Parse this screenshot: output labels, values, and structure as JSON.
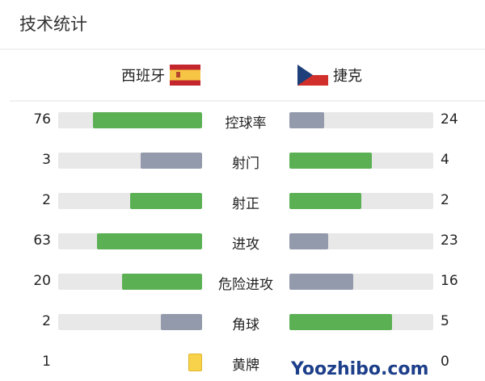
{
  "title": "技术统计",
  "teams": {
    "home": {
      "name": "西班牙",
      "flag": "spain-flag"
    },
    "away": {
      "name": "捷克",
      "flag": "czech-flag"
    }
  },
  "colors": {
    "winner": "#5cb054",
    "loser": "#939aab",
    "track": "#e8e8e8",
    "yellow_card": "#f8d24a"
  },
  "stats": [
    {
      "label": "控球率",
      "home": "76",
      "away": "24"
    },
    {
      "label": "射门",
      "home": "3",
      "away": "4"
    },
    {
      "label": "射正",
      "home": "2",
      "away": "2"
    },
    {
      "label": "进攻",
      "home": "63",
      "away": "23"
    },
    {
      "label": "危险进攻",
      "home": "20",
      "away": "16"
    },
    {
      "label": "角球",
      "home": "2",
      "away": "5"
    },
    {
      "label": "黄牌",
      "home": "1",
      "away": "0",
      "type": "card"
    }
  ],
  "watermark": "Yoozhibo.com"
}
